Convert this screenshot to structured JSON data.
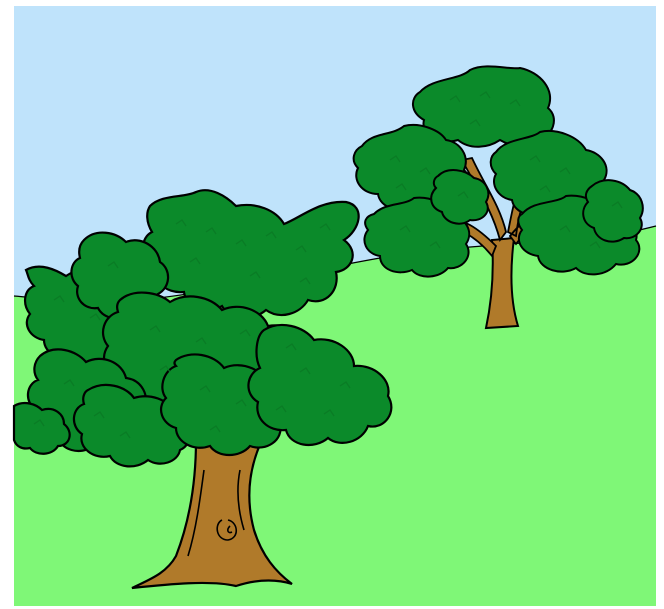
{
  "scene": {
    "colors": {
      "background": "#ffffff",
      "sky": "#bfe3fb",
      "grass": "#7ff777",
      "foliage": "#0b8a2a",
      "foliage_texture": "#0a7a25",
      "trunk": "#b07a2a",
      "outline": "#000000"
    },
    "elements": [
      "sky",
      "grassy-hill",
      "large-tree",
      "small-tree"
    ]
  }
}
